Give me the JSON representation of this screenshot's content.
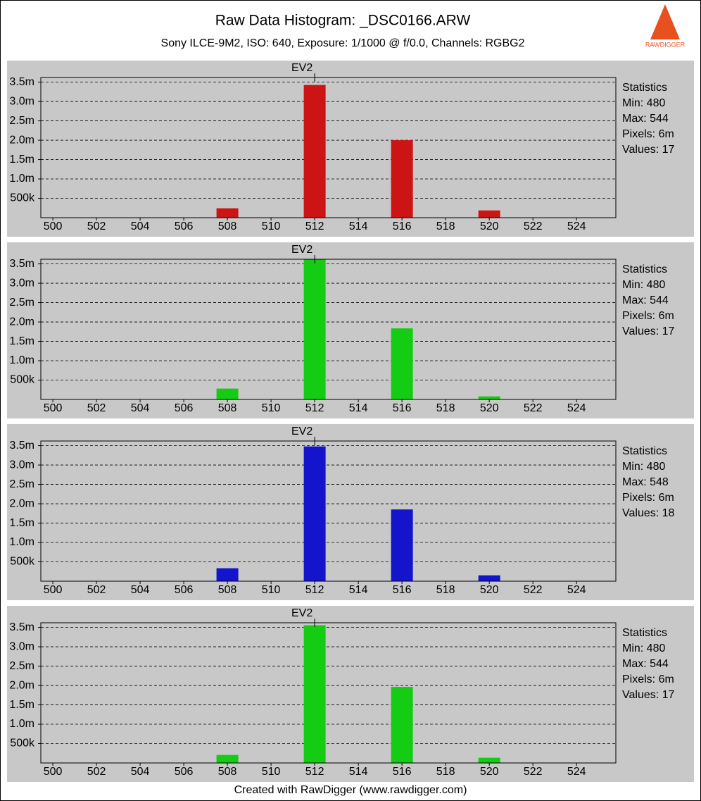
{
  "header": {
    "title": "Raw Data Histogram: _DSC0166.ARW",
    "subtitle": "Sony ILCE-9M2, ISO: 640, Exposure: 1/1000 @ f/0.0, Channels: RGBG2",
    "logo": "RAWDIGGER"
  },
  "footer": "Created with RawDigger (www.rawdigger.com)",
  "chart_data": [
    {
      "type": "bar",
      "annotations": [
        {
          "text": "EV2",
          "x": 512
        }
      ],
      "x": [
        508,
        512,
        516,
        520
      ],
      "values": [
        243000,
        3427000,
        2000000,
        188000
      ],
      "color": "#cc1414",
      "xlim": [
        499.45,
        525.8
      ],
      "xticks": [
        500,
        502,
        504,
        506,
        508,
        510,
        512,
        514,
        516,
        518,
        520,
        522,
        524
      ],
      "ylim": [
        0,
        3620000
      ],
      "yticks": [
        {
          "value": 500000,
          "label": "500k"
        },
        {
          "value": 1000000,
          "label": "1.0m"
        },
        {
          "value": 1500000,
          "label": "1.5m"
        },
        {
          "value": 2000000,
          "label": "2.0m"
        },
        {
          "value": 2500000,
          "label": "2.5m"
        },
        {
          "value": 3000000,
          "label": "3.0m"
        },
        {
          "value": 3500000,
          "label": "3.5m"
        }
      ],
      "grid": true,
      "stats": [
        "Statistics",
        "Min: 480",
        "Max: 544",
        "Pixels: 6m",
        "Values: 17"
      ]
    },
    {
      "type": "bar",
      "annotations": [
        {
          "text": "EV2",
          "x": 512
        }
      ],
      "x": [
        508,
        512,
        516,
        520
      ],
      "values": [
        280000,
        3620000,
        1835000,
        79000
      ],
      "color": "#14cc14",
      "xlim": [
        499.45,
        525.8
      ],
      "xticks": [
        500,
        502,
        504,
        506,
        508,
        510,
        512,
        514,
        516,
        518,
        520,
        522,
        524
      ],
      "ylim": [
        0,
        3620000
      ],
      "yticks": [
        {
          "value": 500000,
          "label": "500k"
        },
        {
          "value": 1000000,
          "label": "1.0m"
        },
        {
          "value": 1500000,
          "label": "1.5m"
        },
        {
          "value": 2000000,
          "label": "2.0m"
        },
        {
          "value": 2500000,
          "label": "2.5m"
        },
        {
          "value": 3000000,
          "label": "3.0m"
        },
        {
          "value": 3500000,
          "label": "3.5m"
        }
      ],
      "grid": true,
      "stats": [
        "Statistics",
        "Min: 480",
        "Max: 544",
        "Pixels: 6m",
        "Values: 17"
      ]
    },
    {
      "type": "bar",
      "annotations": [
        {
          "text": "EV2",
          "x": 512
        }
      ],
      "x": [
        508,
        512,
        516,
        520
      ],
      "values": [
        335000,
        3480000,
        1853000,
        152000
      ],
      "color": "#1414cc",
      "xlim": [
        499.45,
        525.8
      ],
      "xticks": [
        500,
        502,
        504,
        506,
        508,
        510,
        512,
        514,
        516,
        518,
        520,
        522,
        524
      ],
      "ylim": [
        0,
        3620000
      ],
      "yticks": [
        {
          "value": 500000,
          "label": "500k"
        },
        {
          "value": 1000000,
          "label": "1.0m"
        },
        {
          "value": 1500000,
          "label": "1.5m"
        },
        {
          "value": 2000000,
          "label": "2.0m"
        },
        {
          "value": 2500000,
          "label": "2.5m"
        },
        {
          "value": 3000000,
          "label": "3.0m"
        },
        {
          "value": 3500000,
          "label": "3.5m"
        }
      ],
      "grid": true,
      "stats": [
        "Statistics",
        "Min: 480",
        "Max: 548",
        "Pixels: 6m",
        "Values: 18"
      ]
    },
    {
      "type": "bar",
      "annotations": [
        {
          "text": "EV2",
          "x": 512
        }
      ],
      "x": [
        508,
        512,
        516,
        520
      ],
      "values": [
        207000,
        3555000,
        1963000,
        134000
      ],
      "color": "#14cc14",
      "xlim": [
        499.45,
        525.8
      ],
      "xticks": [
        500,
        502,
        504,
        506,
        508,
        510,
        512,
        514,
        516,
        518,
        520,
        522,
        524
      ],
      "ylim": [
        0,
        3620000
      ],
      "yticks": [
        {
          "value": 500000,
          "label": "500k"
        },
        {
          "value": 1000000,
          "label": "1.0m"
        },
        {
          "value": 1500000,
          "label": "1.5m"
        },
        {
          "value": 2000000,
          "label": "2.0m"
        },
        {
          "value": 2500000,
          "label": "2.5m"
        },
        {
          "value": 3000000,
          "label": "3.0m"
        },
        {
          "value": 3500000,
          "label": "3.5m"
        }
      ],
      "grid": true,
      "stats": [
        "Statistics",
        "Min: 480",
        "Max: 544",
        "Pixels: 6m",
        "Values: 17"
      ]
    }
  ]
}
